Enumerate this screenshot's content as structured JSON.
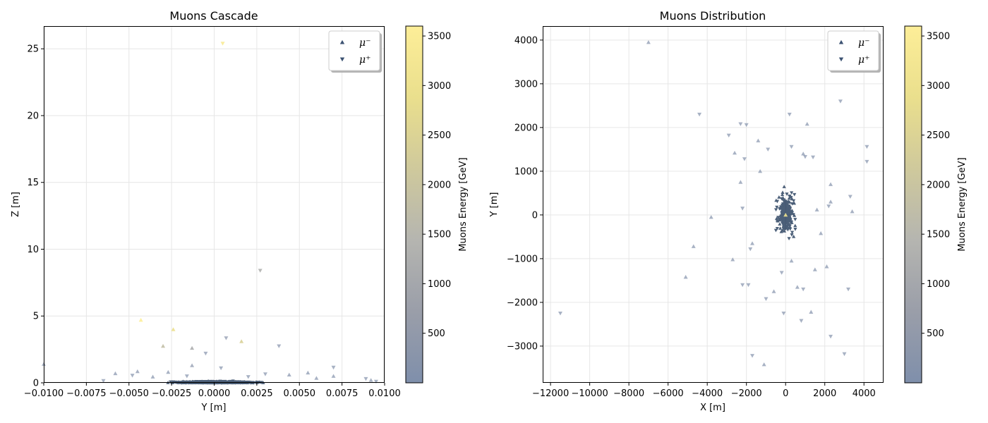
{
  "palette": {
    "marker_low": "#102a4c",
    "colormap": [
      "#7f8fab",
      "#9a9ea9",
      "#b5b5b0",
      "#cfc99c",
      "#eadf8d",
      "#fdee98"
    ],
    "grid": "#e6e6e6"
  },
  "chart_data": [
    {
      "type": "scatter",
      "title": "Muons Cascade",
      "xlabel": "Y [m]",
      "ylabel": "Z [m]",
      "xlim": [
        -0.01,
        0.01
      ],
      "ylim": [
        0,
        26.7
      ],
      "xticks": [
        "−0.0100",
        "−0.0075",
        "−0.0050",
        "−0.0025",
        "0.0000",
        "0.0025",
        "0.0050",
        "0.0075",
        "0.0100"
      ],
      "yticks": [
        "0",
        "5",
        "10",
        "15",
        "20",
        "25"
      ],
      "grid": true,
      "legend": {
        "placement": "top-right",
        "entries": [
          "μ⁻",
          "μ⁺"
        ]
      },
      "colorbar": {
        "label": "Muons Energy [GeV]",
        "range": [
          0,
          3600
        ],
        "ticks": [
          "500",
          "1000",
          "1500",
          "2000",
          "2500",
          "3000",
          "3500"
        ]
      },
      "series": [
        {
          "name": "μ⁻",
          "marker": "triangle-up",
          "points": [
            {
              "x": -0.0043,
              "y": 4.7,
              "e": 3600
            },
            {
              "x": -0.0024,
              "y": 4.0,
              "e": 2900
            },
            {
              "x": -0.003,
              "y": 2.75,
              "e": 1800
            },
            {
              "x": -0.0013,
              "y": 2.6,
              "e": 1200
            },
            {
              "x": 0.0016,
              "y": 3.1,
              "e": 2400
            },
            {
              "x": -0.0013,
              "y": 1.3,
              "e": 200
            },
            {
              "x": -0.0045,
              "y": 0.85,
              "e": 150
            },
            {
              "x": -0.0058,
              "y": 0.7,
              "e": 100
            },
            {
              "x": 0.0055,
              "y": 0.75,
              "e": 100
            },
            {
              "x": 0.007,
              "y": 0.5,
              "e": 100
            },
            {
              "x": -0.01,
              "y": 1.4,
              "e": 100
            },
            {
              "x": -0.0027,
              "y": 0.8,
              "e": 100
            },
            {
              "x": 0.0044,
              "y": 0.6,
              "e": 100
            },
            {
              "x": -0.0036,
              "y": 0.45,
              "e": 100
            },
            {
              "x": 0.0092,
              "y": 0.2,
              "e": 100
            },
            {
              "x": 0.006,
              "y": 0.35,
              "e": 100
            }
          ]
        },
        {
          "name": "μ⁺",
          "marker": "triangle-down",
          "points": [
            {
              "x": 0.0005,
              "y": 25.4,
              "e": 3400
            },
            {
              "x": 0.0027,
              "y": 8.4,
              "e": 1300
            },
            {
              "x": 0.0007,
              "y": 3.35,
              "e": 200
            },
            {
              "x": -0.0005,
              "y": 2.2,
              "e": 150
            },
            {
              "x": 0.0038,
              "y": 2.75,
              "e": 150
            },
            {
              "x": 0.007,
              "y": 1.15,
              "e": 100
            },
            {
              "x": 0.0004,
              "y": 1.1,
              "e": 100
            },
            {
              "x": 0.0089,
              "y": 0.3,
              "e": 100
            },
            {
              "x": 0.0095,
              "y": 0.1,
              "e": 100
            },
            {
              "x": -0.0048,
              "y": 0.55,
              "e": 100
            },
            {
              "x": 0.003,
              "y": 0.65,
              "e": 100
            },
            {
              "x": -0.0065,
              "y": 0.15,
              "e": 100
            },
            {
              "x": 0.002,
              "y": 0.45,
              "e": 100
            },
            {
              "x": -0.0016,
              "y": 0.5,
              "e": 100
            }
          ]
        }
      ]
    },
    {
      "type": "scatter",
      "title": "Muons Distribution",
      "xlabel": "X [m]",
      "ylabel": "Y [m]",
      "xlim": [
        -12400,
        5000
      ],
      "ylim": [
        -3840,
        4320
      ],
      "xticks": [
        "−12000",
        "−10000",
        "−8000",
        "−6000",
        "−4000",
        "−2000",
        "0",
        "2000",
        "4000"
      ],
      "yticks": [
        "−3000",
        "−2000",
        "−1000",
        "0",
        "1000",
        "2000",
        "3000",
        "4000"
      ],
      "grid": true,
      "legend": {
        "placement": "top-right",
        "entries": [
          "μ⁻",
          "μ⁺"
        ]
      },
      "colorbar": {
        "label": "Muons Energy [GeV]",
        "range": [
          0,
          3600
        ],
        "ticks": [
          "500",
          "1000",
          "1500",
          "2000",
          "2500",
          "3000",
          "3500"
        ]
      },
      "series": [
        {
          "name": "μ⁻",
          "marker": "triangle-up",
          "points": [
            {
              "x": -7000,
              "y": 3950,
              "e": 100
            },
            {
              "x": -5100,
              "y": -1420,
              "e": 100
            },
            {
              "x": -4700,
              "y": -720,
              "e": 100
            },
            {
              "x": -3800,
              "y": -50,
              "e": 100
            },
            {
              "x": -2700,
              "y": -1020,
              "e": 100
            },
            {
              "x": -2600,
              "y": 1420,
              "e": 100
            },
            {
              "x": -2300,
              "y": 750,
              "e": 100
            },
            {
              "x": -1400,
              "y": 1700,
              "e": 100
            },
            {
              "x": -1100,
              "y": -3420,
              "e": 100
            },
            {
              "x": 1100,
              "y": 2080,
              "e": 100
            },
            {
              "x": 2300,
              "y": 700,
              "e": 100
            },
            {
              "x": 2300,
              "y": 300,
              "e": 100
            },
            {
              "x": 3400,
              "y": 80,
              "e": 100
            },
            {
              "x": 2100,
              "y": -1180,
              "e": 100
            },
            {
              "x": 1300,
              "y": -2220,
              "e": 100
            },
            {
              "x": 1500,
              "y": -1250,
              "e": 100
            },
            {
              "x": 600,
              "y": -1650,
              "e": 100
            },
            {
              "x": 300,
              "y": -1050,
              "e": 100
            },
            {
              "x": -600,
              "y": -1750,
              "e": 100
            },
            {
              "x": 1800,
              "y": -420,
              "e": 100
            },
            {
              "x": 1600,
              "y": 120,
              "e": 100
            },
            {
              "x": -1700,
              "y": -650,
              "e": 100
            },
            {
              "x": -1300,
              "y": 1000,
              "e": 100
            },
            {
              "x": 900,
              "y": 1400,
              "e": 100
            },
            {
              "x": 0,
              "y": 0,
              "e": 3000
            }
          ]
        },
        {
          "name": "μ⁺",
          "marker": "triangle-down",
          "points": [
            {
              "x": -11500,
              "y": -2250,
              "e": 100
            },
            {
              "x": -4400,
              "y": 2300,
              "e": 100
            },
            {
              "x": -2900,
              "y": 1820,
              "e": 100
            },
            {
              "x": -2300,
              "y": 2080,
              "e": 100
            },
            {
              "x": -2000,
              "y": 2060,
              "e": 100
            },
            {
              "x": -2200,
              "y": -1600,
              "e": 100
            },
            {
              "x": -1900,
              "y": -1600,
              "e": 100
            },
            {
              "x": -1700,
              "y": -3220,
              "e": 100
            },
            {
              "x": -1000,
              "y": -1920,
              "e": 100
            },
            {
              "x": -100,
              "y": -2250,
              "e": 100
            },
            {
              "x": 800,
              "y": -2420,
              "e": 100
            },
            {
              "x": 2300,
              "y": -2780,
              "e": 100
            },
            {
              "x": 3000,
              "y": -3180,
              "e": 100
            },
            {
              "x": 3200,
              "y": -1700,
              "e": 100
            },
            {
              "x": 2800,
              "y": 2600,
              "e": 100
            },
            {
              "x": 4150,
              "y": 1560,
              "e": 100
            },
            {
              "x": 4150,
              "y": 1220,
              "e": 100
            },
            {
              "x": 3300,
              "y": 420,
              "e": 100
            },
            {
              "x": 200,
              "y": 2300,
              "e": 100
            },
            {
              "x": 300,
              "y": 1560,
              "e": 100
            },
            {
              "x": -900,
              "y": 1500,
              "e": 100
            },
            {
              "x": -2100,
              "y": 1280,
              "e": 100
            },
            {
              "x": 1400,
              "y": 1320,
              "e": 100
            },
            {
              "x": 1000,
              "y": 1330,
              "e": 100
            },
            {
              "x": -2200,
              "y": 150,
              "e": 100
            },
            {
              "x": -1800,
              "y": -780,
              "e": 100
            },
            {
              "x": -200,
              "y": -1320,
              "e": 100
            },
            {
              "x": 900,
              "y": -1700,
              "e": 100
            },
            {
              "x": 2200,
              "y": 200,
              "e": 100
            }
          ]
        }
      ]
    }
  ]
}
